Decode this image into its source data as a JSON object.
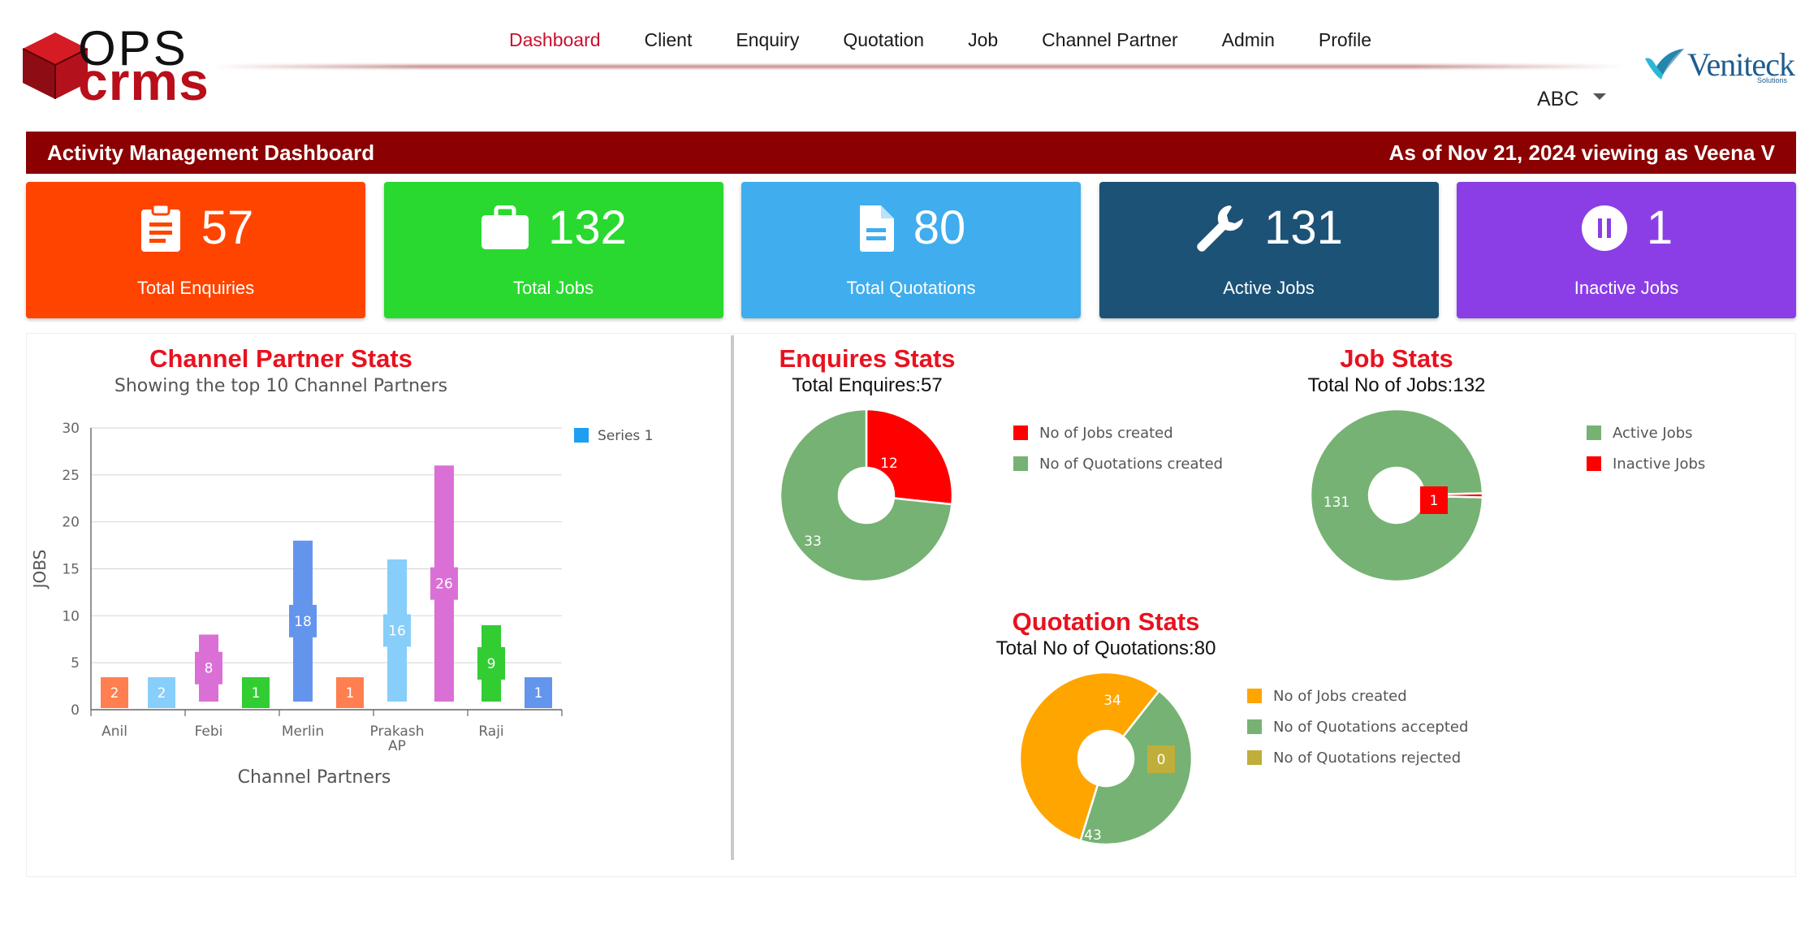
{
  "brand": {
    "logo_top": "OPS",
    "logo_bottom": "crms",
    "partner": "Veniteck",
    "partner_sub": "Solutions"
  },
  "nav": {
    "items": [
      {
        "label": "Dashboard",
        "active": true
      },
      {
        "label": "Client"
      },
      {
        "label": "Enquiry"
      },
      {
        "label": "Quotation"
      },
      {
        "label": "Job"
      },
      {
        "label": "Channel Partner"
      },
      {
        "label": "Admin"
      },
      {
        "label": "Profile"
      }
    ]
  },
  "user_select": {
    "value": "ABC"
  },
  "titlebar": {
    "title": "Activity Management Dashboard",
    "status": "As of Nov 21, 2024 viewing as Veena V"
  },
  "cards": [
    {
      "value": "57",
      "label": "Total Enquiries",
      "color": "#ff4400",
      "icon": "clipboard-icon"
    },
    {
      "value": "132",
      "label": "Total Jobs",
      "color": "#29d92f",
      "icon": "briefcase-icon"
    },
    {
      "value": "80",
      "label": "Total Quotations",
      "color": "#3fadee",
      "icon": "document-icon"
    },
    {
      "value": "131",
      "label": "Active Jobs",
      "color": "#1c5276",
      "icon": "wrench-icon"
    },
    {
      "value": "1",
      "label": "Inactive Jobs",
      "color": "#8b3ee6",
      "icon": "pause-circle-icon"
    }
  ],
  "channel_partner": {
    "title": "Channel Partner Stats",
    "subtitle": "Showing the top 10 Channel Partners"
  },
  "enquiry_stats": {
    "title": "Enquires Stats",
    "subtitle": "Total Enquires:57"
  },
  "job_stats": {
    "title": "Job Stats",
    "subtitle": "Total No of Jobs:132"
  },
  "quotation_stats": {
    "title": "Quotation Stats",
    "subtitle": "Total No of Quotations:80"
  },
  "chart_data": [
    {
      "type": "bar",
      "title": "Channel Partner Stats",
      "subtitle": "Showing the top 10 Channel Partners",
      "xlabel": "Channel Partners",
      "ylabel": "JOBS",
      "ylim": [
        0,
        30
      ],
      "yticks": [
        0,
        5,
        10,
        15,
        20,
        25,
        30
      ],
      "grid": true,
      "legend": "top-right",
      "categories": [
        "Anil",
        "",
        "Febi",
        "",
        "Merlin",
        "",
        "Prakash AP",
        "",
        "Raji",
        ""
      ],
      "tick_labels": [
        "Anil",
        "Febi",
        "Merlin",
        "Prakash AP",
        "Raji"
      ],
      "series": [
        {
          "name": "Series 1",
          "values": [
            2,
            2,
            8,
            1,
            18,
            1,
            16,
            26,
            9,
            1
          ]
        }
      ],
      "colors": [
        "#ff7f50",
        "#87cefa",
        "#da70d6",
        "#32cd32",
        "#6495ed",
        "#ff7f50",
        "#87cefa",
        "#da70d6",
        "#32cd32",
        "#6495ed"
      ]
    },
    {
      "type": "pie",
      "title": "Enquires Stats",
      "subtitle": "Total Enquires:57",
      "legend": "right",
      "slices": [
        {
          "label": "No of Jobs created",
          "value": 12,
          "color": "#ff0000"
        },
        {
          "label": "No of Quotations created",
          "value": 33,
          "color": "#76b274"
        }
      ]
    },
    {
      "type": "pie",
      "title": "Job Stats",
      "subtitle": "Total No of Jobs:132",
      "legend": "right",
      "slices": [
        {
          "label": "Active Jobs",
          "value": 131,
          "color": "#76b274"
        },
        {
          "label": "Inactive Jobs",
          "value": 1,
          "color": "#ff0000"
        }
      ]
    },
    {
      "type": "pie",
      "title": "Quotation Stats",
      "subtitle": "Total No of Quotations:80",
      "legend": "right",
      "slices": [
        {
          "label": "No of Jobs created",
          "value": 43,
          "color": "#ffa500"
        },
        {
          "label": "No of Quotations accepted",
          "value": 34,
          "color": "#76b274"
        },
        {
          "label": "No of Quotations rejected",
          "value": 0,
          "color": "#bfae3a"
        }
      ]
    }
  ]
}
